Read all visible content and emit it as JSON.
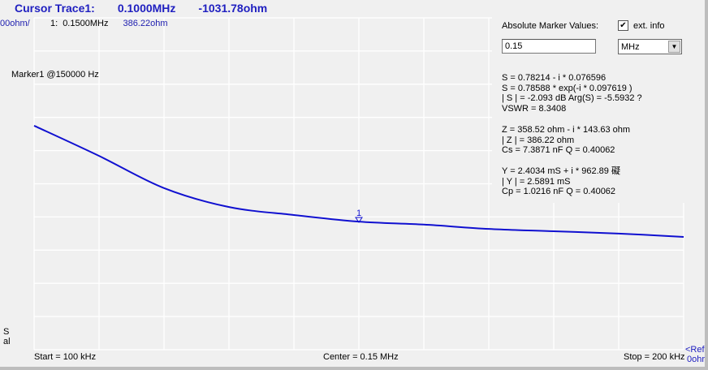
{
  "header": {
    "cursor_label": "Cursor Trace1:",
    "cursor_freq": "0.1000MHz",
    "cursor_value": "-1031.78ohm"
  },
  "scale_label": "00ohm/",
  "marker_row": {
    "index": "1:",
    "freq": "0.1500MHz",
    "value": "386.22ohm"
  },
  "marker_label": "Marker1 @150000 Hz",
  "marker_glyph": "1",
  "left_edge": [
    "S",
    "al"
  ],
  "panel": {
    "title": "Absolute Marker Values:",
    "ext_info_label": "ext. info",
    "ext_info_checked": true,
    "freq_value": "0.15",
    "unit": "MHz",
    "lines_s": [
      "S = 0.78214 - i * 0.076596",
      "S = 0.78588 * exp(-i * 0.097619 )",
      "| S | =    -2.093 dB    Arg(S) = -5.5932 ?",
      "VSWR = 8.3408"
    ],
    "lines_z": [
      "Z = 358.52 ohm - i * 143.63 ohm",
      "| Z | = 386.22 ohm",
      "Cs = 7.3871 nF      Q = 0.40062"
    ],
    "lines_y": [
      "Y = 2.4034 mS    + i * 962.89 礙",
      "| Y | = 2.5891 mS",
      "Cp = 1.0216 nF      Q = 0.40062"
    ]
  },
  "footer": {
    "start": "Start = 100 kHz",
    "center": "Center = 0.15 MHz",
    "stop": "Stop = 200 kHz",
    "ref1": "<Ref",
    "ref2": "0ohr"
  },
  "colors": {
    "trace": "#1010d0",
    "grid": "#ffffff",
    "background": "#f0f0f0",
    "title": "#2020c0"
  },
  "chart_data": {
    "type": "line",
    "x_unit": "kHz",
    "y_unit": "ohm",
    "xlim": [
      100,
      200
    ],
    "ylim": [
      0,
      1000
    ],
    "grid": true,
    "x": [
      100,
      110,
      120,
      130,
      140,
      150,
      160,
      170,
      180,
      190,
      200
    ],
    "y": [
      675,
      584,
      487,
      430,
      406,
      386,
      377,
      364,
      357,
      350,
      340
    ],
    "marker": {
      "x": 150,
      "y": 386.22
    }
  }
}
